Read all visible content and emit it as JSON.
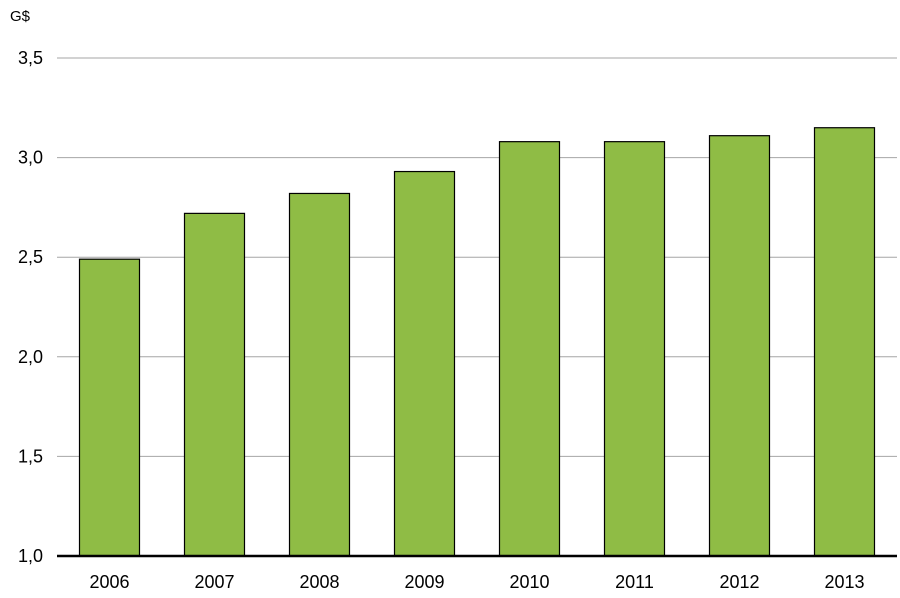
{
  "chart_data": {
    "type": "bar",
    "title": "",
    "xlabel": "",
    "ylabel": "G$",
    "categories": [
      "2006",
      "2007",
      "2008",
      "2009",
      "2010",
      "2011",
      "2012",
      "2013"
    ],
    "values": [
      2.49,
      2.72,
      2.82,
      2.93,
      3.08,
      3.08,
      3.11,
      3.15
    ],
    "ylim": [
      1.0,
      3.5
    ],
    "yticks": [
      1.0,
      1.5,
      2.0,
      2.5,
      3.0,
      3.5
    ],
    "ytick_labels": [
      "1,0",
      "1,5",
      "2,0",
      "2,5",
      "3,0",
      "3,5"
    ],
    "grid": true,
    "legend": "none",
    "colors": {
      "bar": "#8fbc45",
      "bar_outline": "#000000",
      "grid": "#a6a6a6",
      "axis": "#000000"
    }
  }
}
